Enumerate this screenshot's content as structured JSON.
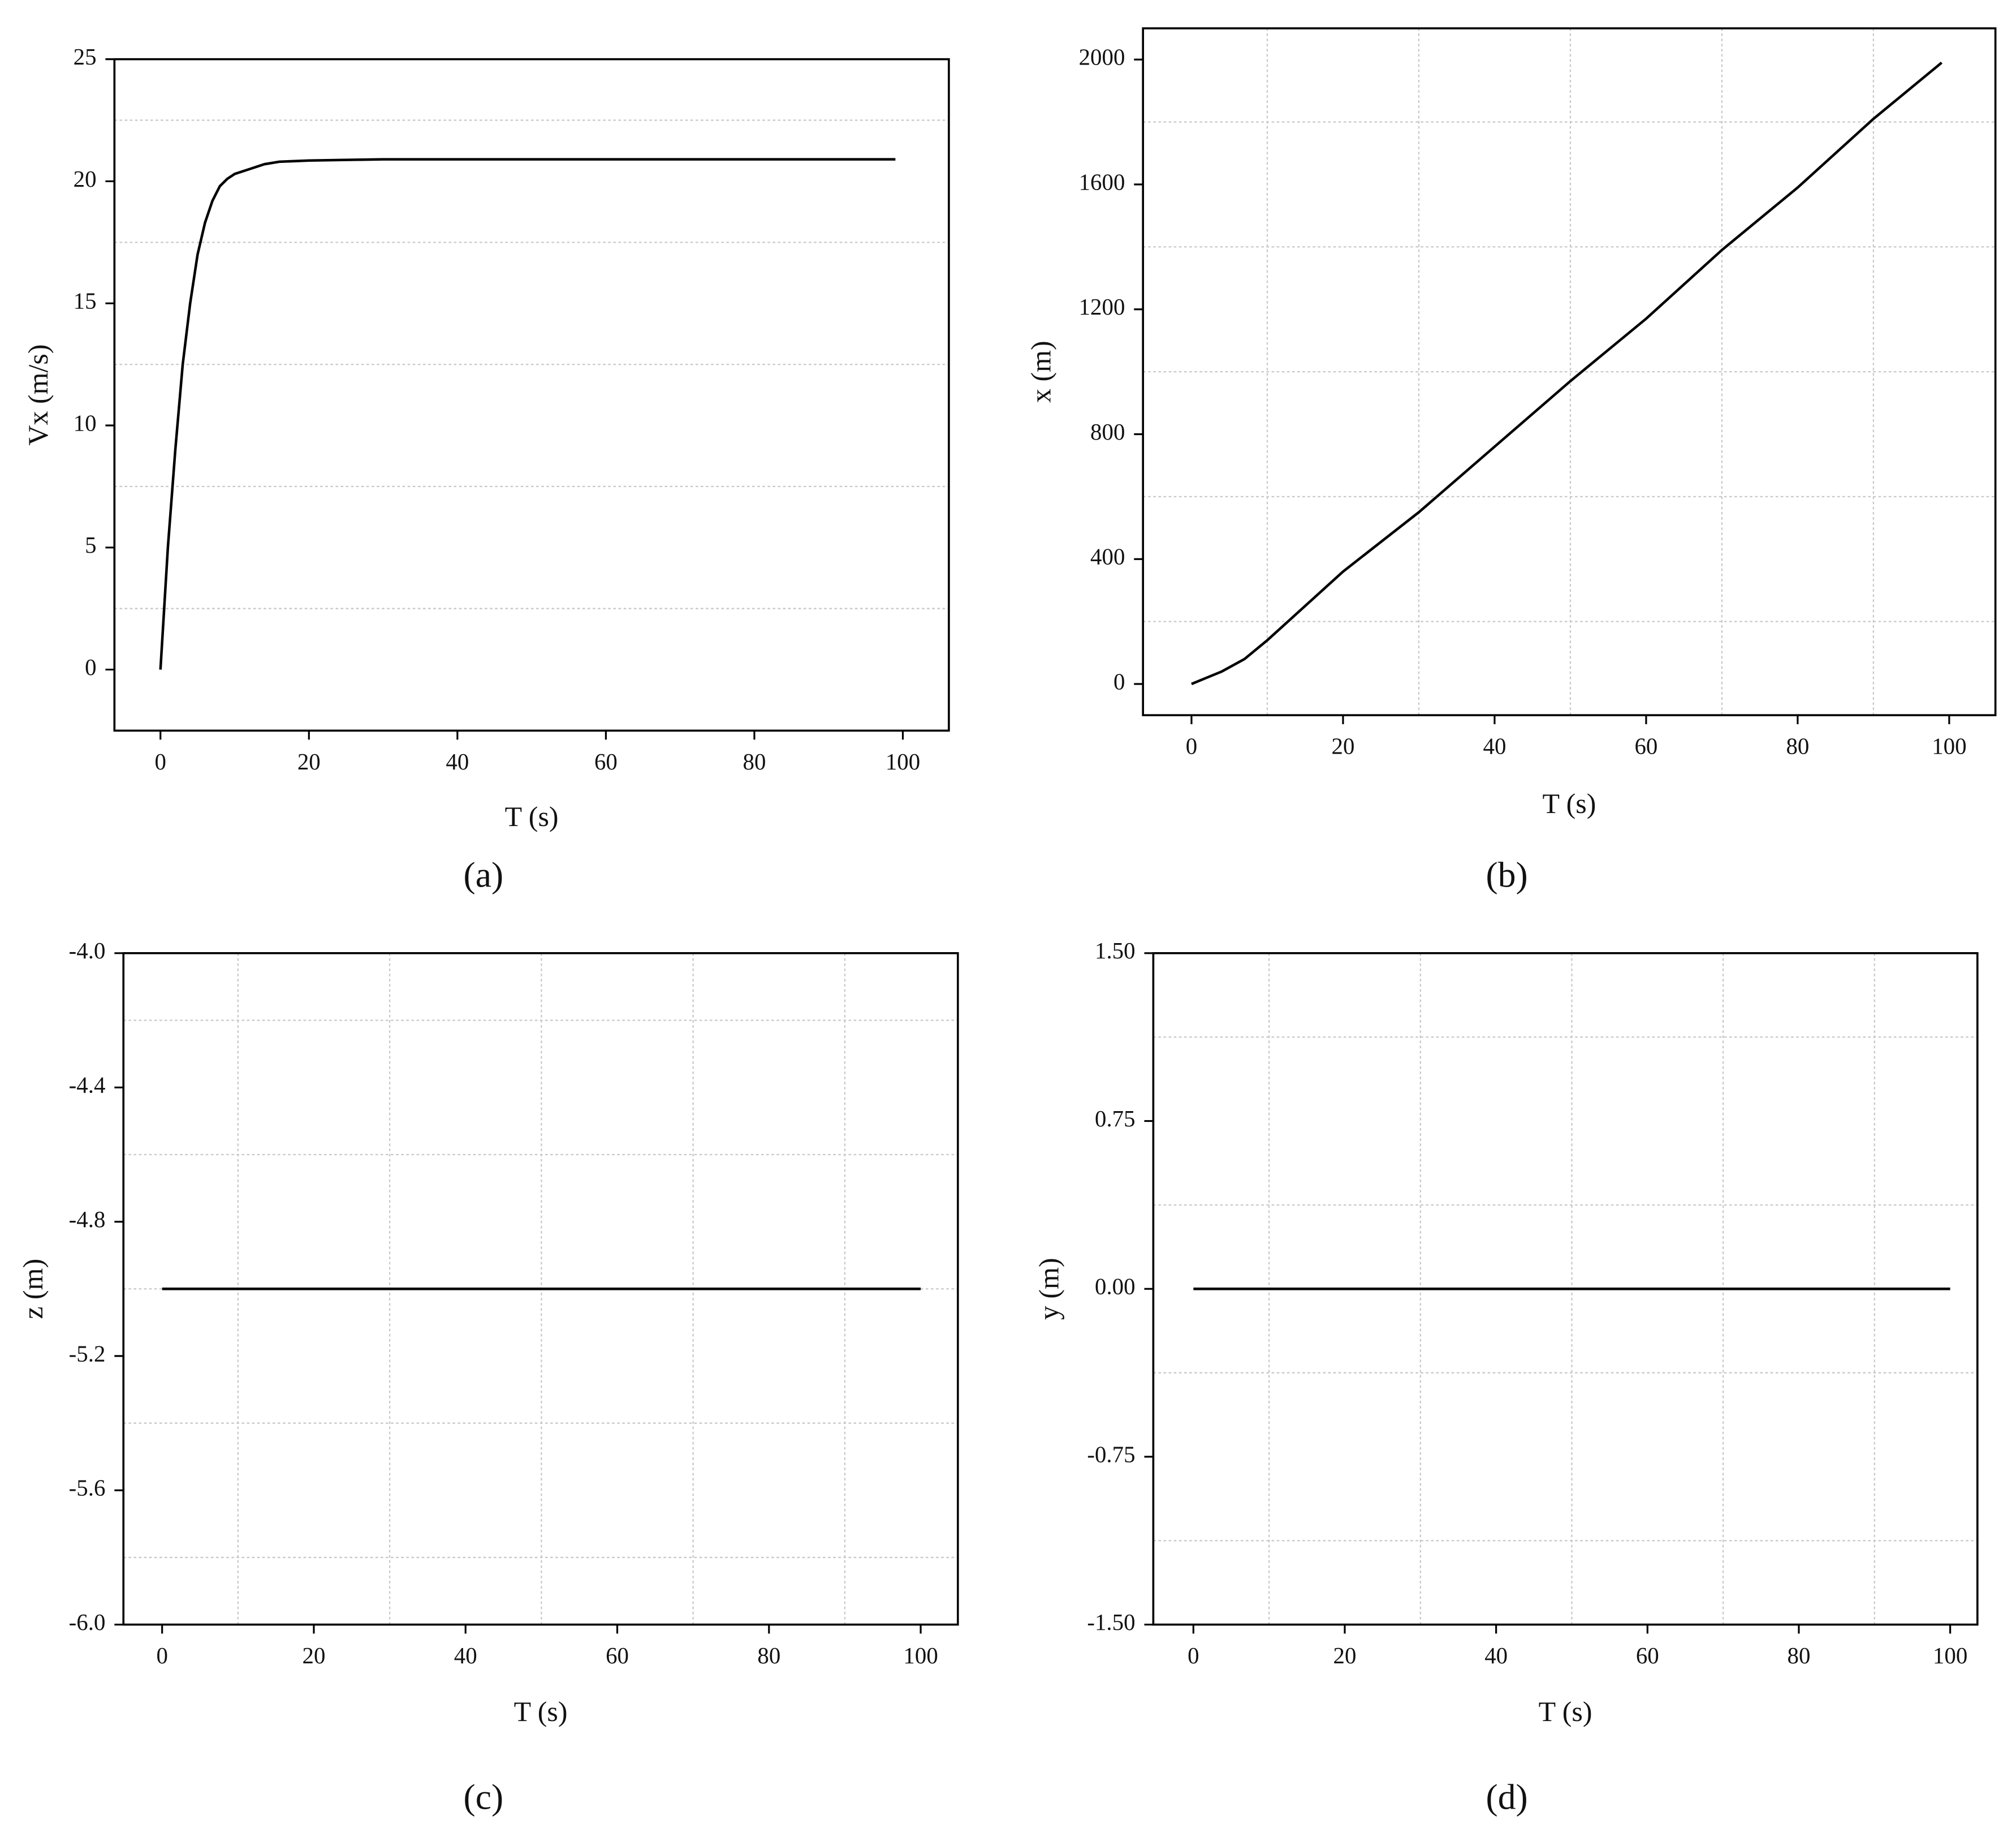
{
  "chart_data": [
    {
      "type": "line",
      "caption": "(a)",
      "xlabel": "T (s)",
      "ylabel": "Vx (m/s)",
      "x": [
        0,
        1,
        2,
        3,
        4,
        5,
        6,
        7,
        8,
        9,
        10,
        12,
        14,
        16,
        20,
        30,
        40,
        50,
        60,
        70,
        80,
        90,
        99
      ],
      "values": [
        0,
        5,
        9,
        12.5,
        15,
        17,
        18.3,
        19.2,
        19.8,
        20.1,
        20.3,
        20.5,
        20.7,
        20.8,
        20.85,
        20.9,
        20.9,
        20.9,
        20.9,
        20.9,
        20.9,
        20.9,
        20.9
      ],
      "color": "#000000",
      "xlim": [
        -6.2,
        106.2
      ],
      "ylim": [
        -2.5,
        25
      ],
      "xticks": [
        0,
        20,
        40,
        60,
        80,
        100
      ],
      "yticks": [
        0,
        5,
        10,
        15,
        20,
        25
      ],
      "grid_y": [
        22.5,
        17.5,
        12.5,
        7.5,
        2.5
      ],
      "grid_x": []
    },
    {
      "type": "line",
      "caption": "(b)",
      "xlabel": "T (s)",
      "ylabel": "x (m)",
      "x": [
        0,
        2,
        4,
        7,
        10,
        20,
        30,
        40,
        50,
        60,
        70,
        80,
        90,
        99
      ],
      "values": [
        0,
        20,
        40,
        80,
        140,
        360,
        550,
        760,
        970,
        1170,
        1390,
        1590,
        1810,
        1990
      ],
      "color": "#000000",
      "xlim": [
        -6.4,
        106.1
      ],
      "ylim": [
        -100,
        2100
      ],
      "xticks": [
        0,
        20,
        40,
        60,
        80,
        100
      ],
      "yticks": [
        0,
        400,
        800,
        1200,
        1600,
        2000
      ],
      "grid_y": [
        200,
        600,
        1000,
        1400,
        1800
      ],
      "grid_x": [
        10,
        30,
        50,
        70,
        90
      ]
    },
    {
      "type": "line",
      "caption": "(c)",
      "xlabel": "T (s)",
      "ylabel": "z (m)",
      "x": [
        0,
        100
      ],
      "values": [
        -5,
        -5
      ],
      "color": "#000000",
      "xlim": [
        -5.1,
        104.9
      ],
      "ylim": [
        -6,
        -4
      ],
      "xticks": [
        0,
        20,
        40,
        60,
        80,
        100
      ],
      "yticks": [
        {
          "value": -4,
          "label": "-4.0"
        },
        {
          "value": -4.4,
          "label": "-4.4"
        },
        {
          "value": -4.8,
          "label": "-4.8"
        },
        {
          "value": -5.2,
          "label": "-5.2"
        },
        {
          "value": -5.6,
          "label": "-5.6"
        },
        {
          "value": -6,
          "label": "-6.0"
        }
      ],
      "grid_y": [
        -4.2,
        -4.6,
        -5.0,
        -5.4,
        -5.8
      ],
      "grid_x": [
        10,
        30,
        50,
        70,
        90
      ]
    },
    {
      "type": "line",
      "caption": "(d)",
      "xlabel": "T (s)",
      "ylabel": "y (m)",
      "x": [
        0,
        100
      ],
      "values": [
        0,
        0
      ],
      "color": "#000000",
      "xlim": [
        -5.3,
        103.6
      ],
      "ylim": [
        -1.5,
        1.5
      ],
      "xticks": [
        0,
        20,
        40,
        60,
        80,
        100
      ],
      "yticks": [
        {
          "value": 1.5,
          "label": "1.50"
        },
        {
          "value": 0.75,
          "label": "0.75"
        },
        {
          "value": 0,
          "label": "0.00"
        },
        {
          "value": -0.75,
          "label": "-0.75"
        },
        {
          "value": -1.5,
          "label": "-1.50"
        }
      ],
      "grid_y": [
        1.125,
        0.375,
        -0.375,
        -1.125
      ],
      "grid_x": [
        10,
        30,
        50,
        70,
        90
      ]
    }
  ]
}
